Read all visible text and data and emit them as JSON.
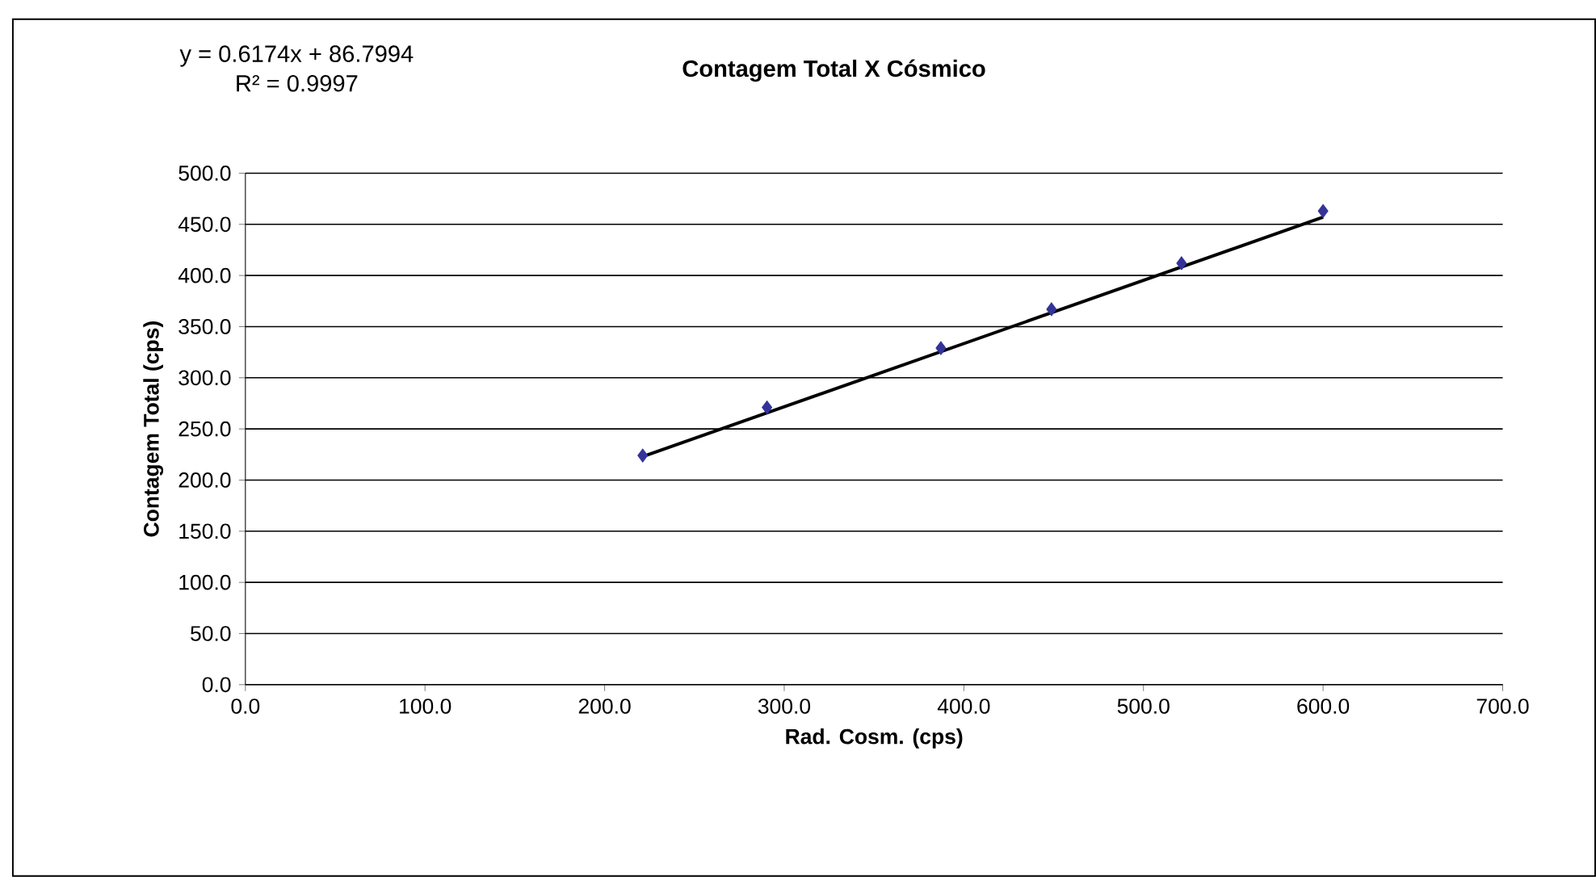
{
  "chart_data": {
    "type": "scatter",
    "title": "Contagem Total X Cósmico",
    "xlabel": "Rad. Cosm. (cps)",
    "ylabel": "Contagem Total (cps)",
    "annotations": [
      "y = 0.6174x + 86.7994",
      "R² = 0.9997"
    ],
    "x": [
      221.2,
      290.4,
      387.2,
      448.8,
      521.2,
      600.0
    ],
    "series": [
      {
        "color": "#333399",
        "marker": "diamond",
        "values": [
          224,
          271,
          329,
          367,
          412,
          463
        ]
      },
      {
        "type": "line",
        "color": "#000000",
        "marker": "none",
        "x": [
          221.2,
          600.0
        ],
        "values": [
          223,
          457
        ]
      }
    ],
    "xlim": [
      0,
      700
    ],
    "ylim": [
      0,
      500
    ],
    "xticks": [
      {
        "value": 0,
        "label": "0.0"
      },
      {
        "value": 100,
        "label": "100.0"
      },
      {
        "value": 200,
        "label": "200.0"
      },
      {
        "value": 300,
        "label": "300.0"
      },
      {
        "value": 400,
        "label": "400.0"
      },
      {
        "value": 500,
        "label": "500.0"
      },
      {
        "value": 600,
        "label": "600.0"
      },
      {
        "value": 700,
        "label": "700.0"
      }
    ],
    "yticks": [
      {
        "value": 0,
        "label": "0.0"
      },
      {
        "value": 50,
        "label": "50.0"
      },
      {
        "value": 100,
        "label": "100.0"
      },
      {
        "value": 150,
        "label": "150.0"
      },
      {
        "value": 200,
        "label": "200.0"
      },
      {
        "value": 250,
        "label": "250.0"
      },
      {
        "value": 300,
        "label": "300.0"
      },
      {
        "value": 350,
        "label": "350.0"
      },
      {
        "value": 400,
        "label": "400.0"
      },
      {
        "value": 450,
        "label": "450.0"
      },
      {
        "value": 500,
        "label": "500.0"
      }
    ],
    "grid": "y"
  }
}
